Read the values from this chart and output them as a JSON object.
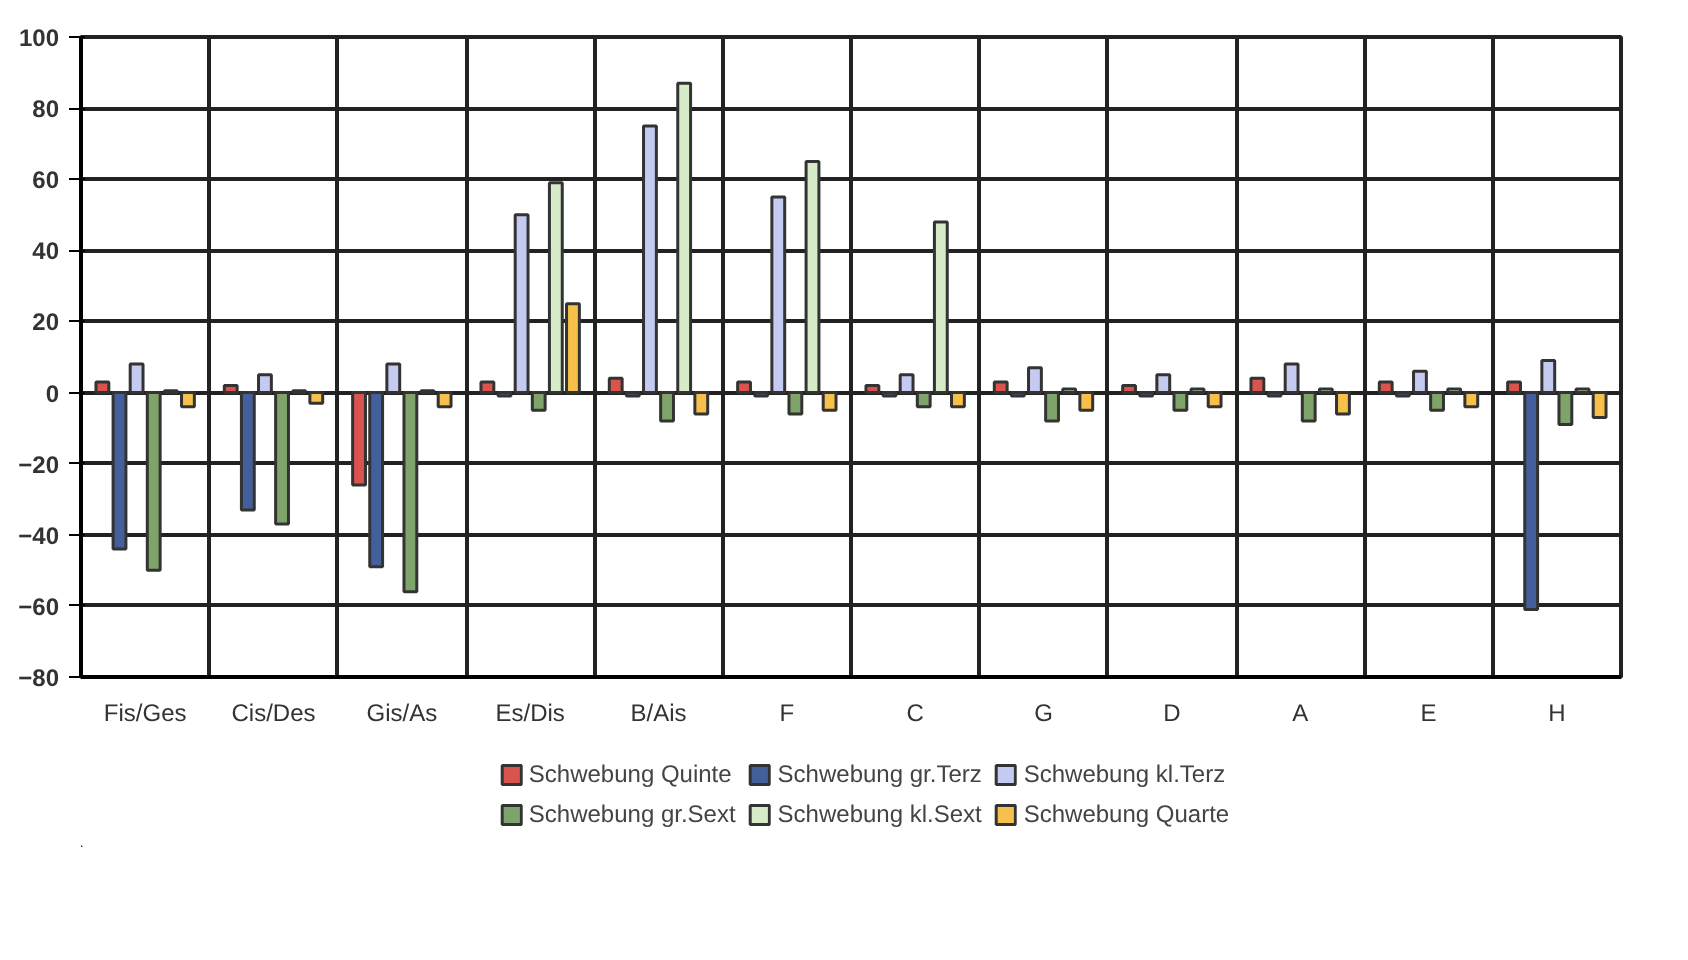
{
  "chart_data": {
    "type": "bar",
    "categories": [
      "Fis/Ges",
      "Cis/Des",
      "Gis/As",
      "Es/Dis",
      "B/Ais",
      "F",
      "C",
      "G",
      "D",
      "A",
      "E",
      "H"
    ],
    "series": [
      {
        "name": "Schwebung Quinte",
        "color": "#d9534f",
        "values": [
          3,
          2,
          -26,
          3,
          4,
          3,
          2,
          3,
          2,
          4,
          3,
          3
        ]
      },
      {
        "name": "Schwebung gr.Terz",
        "color": "#44609c",
        "values": [
          -44,
          -33,
          -49,
          -1,
          -1,
          -1,
          -1,
          -1,
          -1,
          -1,
          -1,
          -61
        ]
      },
      {
        "name": "Schwebung kl.Terz",
        "color": "#c5cbf0",
        "values": [
          8,
          5,
          8,
          50,
          75,
          55,
          5,
          7,
          5,
          8,
          6,
          9
        ]
      },
      {
        "name": "Schwebung gr.Sext",
        "color": "#7fa46a",
        "values": [
          -50,
          -37,
          -56,
          -5,
          -8,
          -6,
          -4,
          -8,
          -5,
          -8,
          -5,
          -9
        ]
      },
      {
        "name": "Schwebung kl.Sext",
        "color": "#d6ecc8",
        "values": [
          0.5,
          0.5,
          0.5,
          59,
          87,
          65,
          48,
          1,
          1,
          1,
          1,
          1
        ]
      },
      {
        "name": "Schwebung Quarte",
        "color": "#f7c04a",
        "values": [
          -4,
          -3,
          -4,
          25,
          -6,
          -5,
          -4,
          -5,
          -4,
          -6,
          -4,
          -7
        ]
      }
    ],
    "ylim": [
      -80,
      100
    ],
    "yticks": [
      -80,
      -60,
      -40,
      -20,
      0,
      20,
      40,
      60,
      80,
      100
    ],
    "grid": true,
    "legend": "bottom"
  }
}
